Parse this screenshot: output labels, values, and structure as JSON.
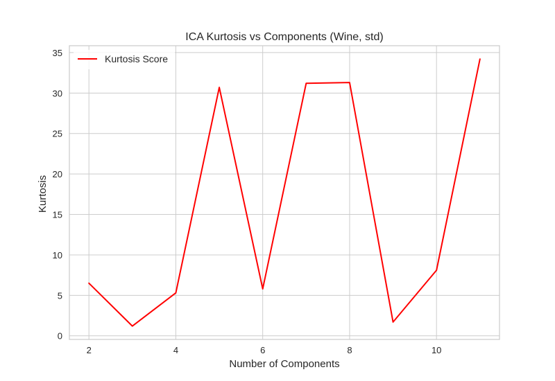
{
  "chart_data": {
    "type": "line",
    "title": "ICA Kurtosis vs Components (Wine, std)",
    "xlabel": "Number of Components",
    "ylabel": "Kurtosis",
    "x": [
      2,
      3,
      4,
      5,
      6,
      7,
      8,
      9,
      10,
      11
    ],
    "series": [
      {
        "name": "Kurtosis Score",
        "color": "#ff0000",
        "values": [
          6.5,
          1.2,
          5.3,
          30.7,
          5.8,
          31.2,
          31.3,
          1.7,
          8.1,
          34.2
        ]
      }
    ],
    "xlim": [
      1.55,
      11.45
    ],
    "ylim": [
      -0.45,
      35.85
    ],
    "xticks": [
      2,
      4,
      6,
      8,
      10
    ],
    "yticks": [
      0,
      5,
      10,
      15,
      20,
      25,
      30,
      35
    ],
    "grid": true,
    "legend_position": "top-left"
  }
}
